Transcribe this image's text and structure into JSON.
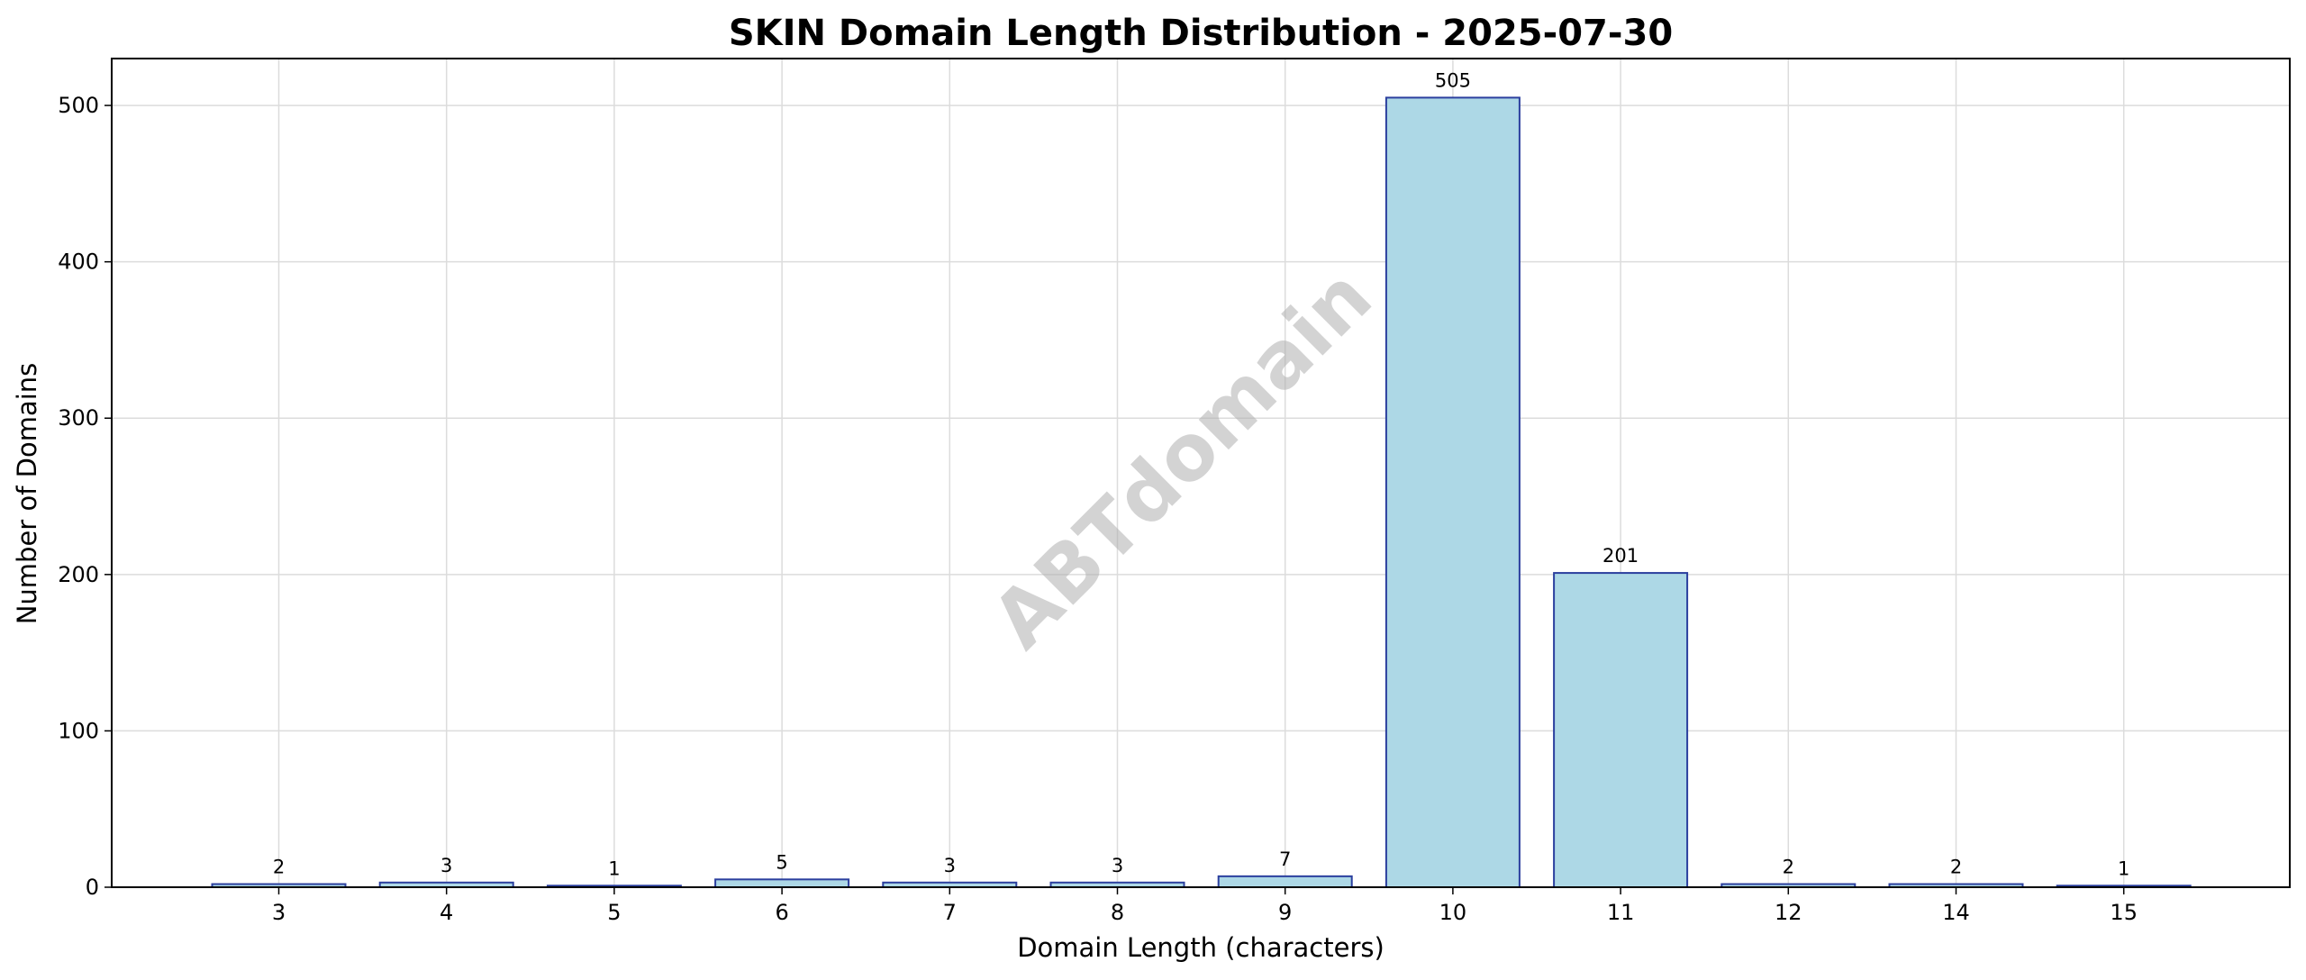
{
  "chart_data": {
    "type": "bar",
    "title": "SKIN Domain Length Distribution - 2025-07-30",
    "xlabel": "Domain Length (characters)",
    "ylabel": "Number of Domains",
    "categories": [
      "3",
      "4",
      "5",
      "6",
      "7",
      "8",
      "9",
      "10",
      "11",
      "12",
      "14",
      "15"
    ],
    "values": [
      2,
      3,
      1,
      5,
      3,
      3,
      7,
      505,
      201,
      2,
      2,
      1
    ],
    "data_labels": [
      "2",
      "3",
      "1",
      "5",
      "3",
      "3",
      "7",
      "505",
      "201",
      "2",
      "2",
      "1"
    ],
    "yticks": [
      0,
      100,
      200,
      300,
      400,
      500
    ],
    "ylim": [
      0,
      530
    ],
    "grid": true,
    "bar_color": "#add8e6",
    "bar_edge_color": "#2b3f9e",
    "watermark": "ABTdomain"
  }
}
